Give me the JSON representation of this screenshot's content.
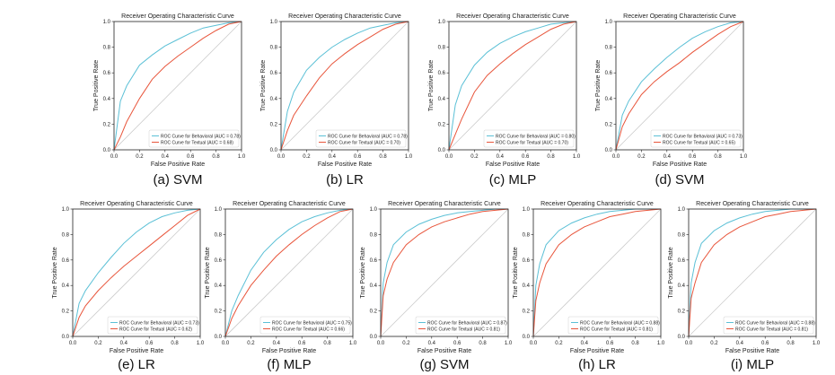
{
  "colors": {
    "behavioral": "#5bc0d6",
    "textual": "#e8553b",
    "diagonal": "#cccccc",
    "axis": "#222222"
  },
  "chart_data": [
    {
      "type": "line",
      "caption": "(a) SVM",
      "title": "Receiver Operating Characteristic Curve",
      "xlabel": "False Positive Rate",
      "ylabel": "True Positive Rate",
      "xlim": [
        0,
        1
      ],
      "ylim": [
        0,
        1
      ],
      "ticks": [
        "0.0",
        "0.2",
        "0.4",
        "0.6",
        "0.8",
        "1.0"
      ],
      "legend_position": "lower right",
      "grid": false,
      "series": [
        {
          "name": "ROC Curve for Behavioral (AUC = 0.78)",
          "x": [
            0,
            0.05,
            0.1,
            0.2,
            0.3,
            0.4,
            0.5,
            0.6,
            0.7,
            0.8,
            0.9,
            1.0
          ],
          "y": [
            0,
            0.38,
            0.5,
            0.66,
            0.74,
            0.81,
            0.86,
            0.91,
            0.95,
            0.97,
            0.99,
            1.0
          ]
        },
        {
          "name": "ROC Curve for Textual (AUC = 0.68)",
          "x": [
            0,
            0.05,
            0.1,
            0.2,
            0.3,
            0.4,
            0.5,
            0.6,
            0.7,
            0.8,
            0.9,
            1.0
          ],
          "y": [
            0,
            0.1,
            0.22,
            0.4,
            0.55,
            0.65,
            0.73,
            0.8,
            0.87,
            0.93,
            0.98,
            1.0
          ]
        }
      ]
    },
    {
      "type": "line",
      "caption": "(b) LR",
      "title": "Receiver Operating Characteristic Curve",
      "xlabel": "False Positive Rate",
      "ylabel": "True Positive Rate",
      "xlim": [
        0,
        1
      ],
      "ylim": [
        0,
        1
      ],
      "ticks": [
        "0.0",
        "0.2",
        "0.4",
        "0.6",
        "0.8",
        "1.0"
      ],
      "legend_position": "lower right",
      "grid": false,
      "series": [
        {
          "name": "ROC Curve for Behavioral (AUC = 0.78)",
          "x": [
            0,
            0.05,
            0.1,
            0.2,
            0.3,
            0.4,
            0.5,
            0.6,
            0.7,
            0.8,
            0.9,
            1.0
          ],
          "y": [
            0,
            0.3,
            0.45,
            0.62,
            0.72,
            0.8,
            0.86,
            0.91,
            0.95,
            0.97,
            0.99,
            1.0
          ]
        },
        {
          "name": "ROC Curve for Textual (AUC = 0.70)",
          "x": [
            0,
            0.05,
            0.1,
            0.2,
            0.3,
            0.4,
            0.5,
            0.6,
            0.7,
            0.8,
            0.9,
            1.0
          ],
          "y": [
            0,
            0.15,
            0.27,
            0.42,
            0.56,
            0.67,
            0.75,
            0.82,
            0.88,
            0.94,
            0.98,
            1.0
          ]
        }
      ]
    },
    {
      "type": "line",
      "caption": "(c) MLP",
      "title": "Receiver Operating Characteristic Curve",
      "xlabel": "False Positive Rate",
      "ylabel": "True Positive Rate",
      "xlim": [
        0,
        1
      ],
      "ylim": [
        0,
        1
      ],
      "ticks": [
        "0.0",
        "0.2",
        "0.4",
        "0.6",
        "0.8",
        "1.0"
      ],
      "legend_position": "lower right",
      "grid": false,
      "series": [
        {
          "name": "ROC Curve for Behavioral (AUC = 0.80)",
          "x": [
            0,
            0.05,
            0.1,
            0.2,
            0.3,
            0.4,
            0.5,
            0.6,
            0.7,
            0.8,
            0.9,
            1.0
          ],
          "y": [
            0,
            0.35,
            0.5,
            0.66,
            0.76,
            0.83,
            0.88,
            0.92,
            0.95,
            0.98,
            0.99,
            1.0
          ]
        },
        {
          "name": "ROC Curve for Textual (AUC = 0.70)",
          "x": [
            0,
            0.05,
            0.1,
            0.2,
            0.3,
            0.4,
            0.5,
            0.6,
            0.7,
            0.8,
            0.9,
            1.0
          ],
          "y": [
            0,
            0.12,
            0.24,
            0.45,
            0.58,
            0.67,
            0.75,
            0.82,
            0.88,
            0.94,
            0.98,
            1.0
          ]
        }
      ]
    },
    {
      "type": "line",
      "caption": "(d) SVM",
      "title": "Receiver Operating Characteristic Curve",
      "xlabel": "False Positive Rate",
      "ylabel": "True Positive Rate",
      "xlim": [
        0,
        1
      ],
      "ylim": [
        0,
        1
      ],
      "ticks": [
        "0.0",
        "0.2",
        "0.4",
        "0.6",
        "0.8",
        "1.0"
      ],
      "legend_position": "lower right",
      "grid": false,
      "series": [
        {
          "name": "ROC Curve for Behavioral (AUC = 0.73)",
          "x": [
            0,
            0.05,
            0.1,
            0.2,
            0.3,
            0.4,
            0.5,
            0.6,
            0.7,
            0.8,
            0.9,
            1.0
          ],
          "y": [
            0,
            0.27,
            0.38,
            0.53,
            0.63,
            0.72,
            0.8,
            0.87,
            0.92,
            0.96,
            0.99,
            1.0
          ]
        },
        {
          "name": "ROC Curve for Textual (AUC = 0.65)",
          "x": [
            0,
            0.05,
            0.1,
            0.2,
            0.3,
            0.4,
            0.5,
            0.6,
            0.7,
            0.8,
            0.9,
            1.0
          ],
          "y": [
            0,
            0.18,
            0.28,
            0.43,
            0.53,
            0.61,
            0.68,
            0.76,
            0.83,
            0.9,
            0.96,
            1.0
          ]
        }
      ]
    },
    {
      "type": "line",
      "caption": "(e) LR",
      "title": "Receiver Operating Characteristic Curve",
      "xlabel": "False Positive Rate",
      "ylabel": "True Positive Rate",
      "xlim": [
        0,
        1
      ],
      "ylim": [
        0,
        1
      ],
      "ticks": [
        "0.0",
        "0.2",
        "0.4",
        "0.6",
        "0.8",
        "1.0"
      ],
      "legend_position": "lower right",
      "grid": false,
      "series": [
        {
          "name": "ROC Curve for Behavioral (AUC = 0.73)",
          "x": [
            0,
            0.05,
            0.1,
            0.2,
            0.3,
            0.4,
            0.5,
            0.6,
            0.7,
            0.8,
            0.9,
            1.0
          ],
          "y": [
            0,
            0.26,
            0.36,
            0.5,
            0.62,
            0.73,
            0.82,
            0.89,
            0.94,
            0.97,
            0.99,
            1.0
          ]
        },
        {
          "name": "ROC Curve for Textual (AUC = 0.62)",
          "x": [
            0,
            0.05,
            0.1,
            0.2,
            0.3,
            0.4,
            0.5,
            0.6,
            0.7,
            0.8,
            0.9,
            1.0
          ],
          "y": [
            0,
            0.15,
            0.24,
            0.36,
            0.46,
            0.55,
            0.63,
            0.71,
            0.79,
            0.87,
            0.95,
            1.0
          ]
        }
      ]
    },
    {
      "type": "line",
      "caption": "(f) MLP",
      "title": "Receiver Operating Characteristic Curve",
      "xlabel": "False Positive Rate",
      "ylabel": "True Positive Rate",
      "xlim": [
        0,
        1
      ],
      "ylim": [
        0,
        1
      ],
      "ticks": [
        "0.0",
        "0.2",
        "0.4",
        "0.6",
        "0.8",
        "1.0"
      ],
      "legend_position": "lower right",
      "grid": false,
      "series": [
        {
          "name": "ROC Curve for Behavioral (AUC = 0.75)",
          "x": [
            0,
            0.05,
            0.1,
            0.2,
            0.3,
            0.4,
            0.5,
            0.6,
            0.7,
            0.8,
            0.9,
            1.0
          ],
          "y": [
            0,
            0.2,
            0.32,
            0.52,
            0.66,
            0.76,
            0.84,
            0.9,
            0.94,
            0.97,
            0.99,
            1.0
          ]
        },
        {
          "name": "ROC Curve for Textual (AUC = 0.66)",
          "x": [
            0,
            0.05,
            0.1,
            0.2,
            0.3,
            0.4,
            0.5,
            0.6,
            0.7,
            0.8,
            0.9,
            1.0
          ],
          "y": [
            0,
            0.14,
            0.24,
            0.4,
            0.52,
            0.63,
            0.72,
            0.8,
            0.87,
            0.93,
            0.98,
            1.0
          ]
        }
      ]
    },
    {
      "type": "line",
      "caption": "(g) SVM",
      "title": "Receiver Operating Characteristic Curve",
      "xlabel": "False Positive Rate",
      "ylabel": "True Positive Rate",
      "xlim": [
        0,
        1
      ],
      "ylim": [
        0,
        1
      ],
      "ticks": [
        "0.0",
        "0.2",
        "0.4",
        "0.6",
        "0.8",
        "1.0"
      ],
      "legend_position": "lower right",
      "grid": false,
      "series": [
        {
          "name": "ROC Curve for Behavioral (AUC = 0.87)",
          "x": [
            0,
            0.02,
            0.05,
            0.1,
            0.2,
            0.3,
            0.4,
            0.5,
            0.6,
            0.7,
            0.8,
            0.9,
            1.0
          ],
          "y": [
            0,
            0.42,
            0.58,
            0.72,
            0.82,
            0.88,
            0.92,
            0.95,
            0.97,
            0.98,
            0.99,
            1.0,
            1.0
          ]
        },
        {
          "name": "ROC Curve for Textual (AUC = 0.81)",
          "x": [
            0,
            0.02,
            0.05,
            0.1,
            0.2,
            0.3,
            0.4,
            0.5,
            0.6,
            0.7,
            0.8,
            0.9,
            1.0
          ],
          "y": [
            0,
            0.32,
            0.45,
            0.58,
            0.72,
            0.8,
            0.86,
            0.9,
            0.93,
            0.96,
            0.98,
            0.99,
            1.0
          ]
        }
      ]
    },
    {
      "type": "line",
      "caption": "(h) LR",
      "title": "Receiver Operating Characteristic Curve",
      "xlabel": "False Positive Rate",
      "ylabel": "True Positive Rate",
      "xlim": [
        0,
        1
      ],
      "ylim": [
        0,
        1
      ],
      "ticks": [
        "0.0",
        "0.2",
        "0.4",
        "0.6",
        "0.8",
        "1.0"
      ],
      "legend_position": "lower right",
      "grid": false,
      "series": [
        {
          "name": "ROC Curve for Behavioral (AUC = 0.88)",
          "x": [
            0,
            0.02,
            0.05,
            0.1,
            0.2,
            0.3,
            0.4,
            0.5,
            0.6,
            0.7,
            0.8,
            0.9,
            1.0
          ],
          "y": [
            0,
            0.4,
            0.57,
            0.72,
            0.83,
            0.89,
            0.93,
            0.96,
            0.98,
            0.99,
            1.0,
            1.0,
            1.0
          ]
        },
        {
          "name": "ROC Curve for Textual (AUC = 0.81)",
          "x": [
            0,
            0.02,
            0.05,
            0.1,
            0.2,
            0.3,
            0.4,
            0.5,
            0.6,
            0.7,
            0.8,
            0.9,
            1.0
          ],
          "y": [
            0,
            0.28,
            0.42,
            0.57,
            0.72,
            0.8,
            0.86,
            0.9,
            0.94,
            0.96,
            0.98,
            0.99,
            1.0
          ]
        }
      ]
    },
    {
      "type": "line",
      "caption": "(i) MLP",
      "title": "Receiver Operating Characteristic Curve",
      "xlabel": "False Positive Rate",
      "ylabel": "True Positive Rate",
      "xlim": [
        0,
        1
      ],
      "ylim": [
        0,
        1
      ],
      "ticks": [
        "0.0",
        "0.2",
        "0.4",
        "0.6",
        "0.8",
        "1.0"
      ],
      "legend_position": "lower right",
      "grid": false,
      "series": [
        {
          "name": "ROC Curve for Behavioral (AUC = 0.88)",
          "x": [
            0,
            0.02,
            0.05,
            0.1,
            0.2,
            0.3,
            0.4,
            0.5,
            0.6,
            0.7,
            0.8,
            0.9,
            1.0
          ],
          "y": [
            0,
            0.42,
            0.58,
            0.73,
            0.83,
            0.89,
            0.93,
            0.96,
            0.98,
            0.99,
            1.0,
            1.0,
            1.0
          ]
        },
        {
          "name": "ROC Curve for Textual (AUC = 0.81)",
          "x": [
            0,
            0.02,
            0.05,
            0.1,
            0.2,
            0.3,
            0.4,
            0.5,
            0.6,
            0.7,
            0.8,
            0.9,
            1.0
          ],
          "y": [
            0,
            0.3,
            0.42,
            0.58,
            0.72,
            0.8,
            0.86,
            0.9,
            0.94,
            0.96,
            0.98,
            0.99,
            1.0
          ]
        }
      ]
    }
  ]
}
